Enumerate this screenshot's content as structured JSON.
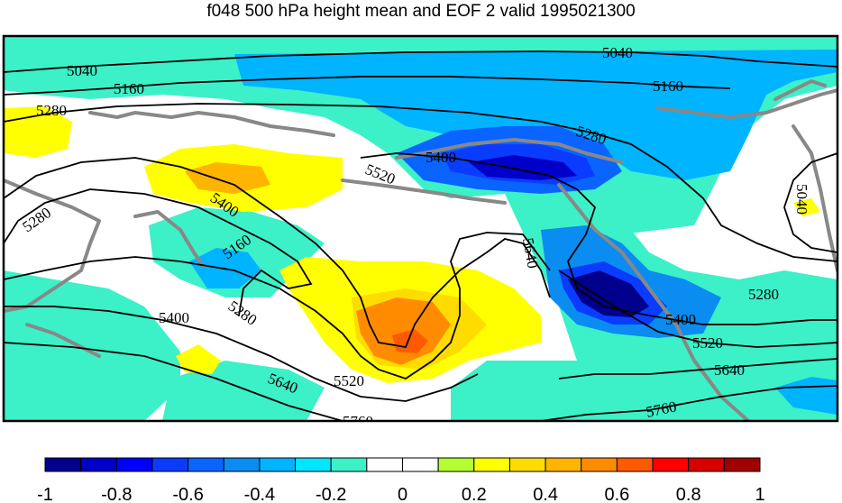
{
  "title": "f048 500 hPa height mean and EOF 2 valid 1995021300",
  "contour_labels": [
    "5040",
    "5160",
    "5280",
    "5400",
    "5520",
    "5640",
    "5760"
  ],
  "colorbar": {
    "min": -1,
    "max": 1,
    "tick_labels": [
      "-1",
      "-0.8",
      "-0.6",
      "-0.4",
      "-0.2",
      "0",
      "0.2",
      "0.4",
      "0.6",
      "0.8",
      "1"
    ],
    "colors": [
      "#00008c",
      "#0000c8",
      "#0000ff",
      "#0a3cff",
      "#0a64ff",
      "#0a8cf0",
      "#00b4ff",
      "#00e6ff",
      "#3cf0c8",
      "#ffffff",
      "#ffffff",
      "#b4ff32",
      "#ffff00",
      "#ffdc00",
      "#ffb400",
      "#ff8c00",
      "#ff5a00",
      "#ff0000",
      "#d70000",
      "#a00000"
    ]
  },
  "colors": {
    "land_outline": "#888888",
    "contour": "#000000",
    "frame": "#000000"
  }
}
